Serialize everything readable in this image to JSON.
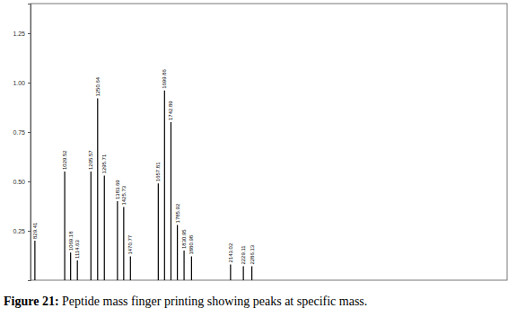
{
  "chart_data": {
    "type": "stem",
    "title": "Figure 21: Peptide mass finger printing showing peaks at specific mass.",
    "x": [
      829.41,
      1029.52,
      1069.18,
      1114.63,
      1205.57,
      1250.64,
      1295.71,
      1383.69,
      1425.73,
      1470.77,
      1657.81,
      1699.86,
      1742.89,
      1785.92,
      1830.95,
      1880.98,
      2143.02,
      2229.11,
      2286.13
    ],
    "values": [
      0.2,
      0.55,
      0.14,
      0.1,
      0.55,
      0.92,
      0.53,
      0.4,
      0.37,
      0.12,
      0.49,
      0.96,
      0.8,
      0.28,
      0.15,
      0.12,
      0.08,
      0.07,
      0.07
    ],
    "color": "#000000",
    "xlim": [
      800,
      4000
    ],
    "ylim": [
      0,
      1.4
    ],
    "yticks": [
      {
        "value": 0.25,
        "label": "0.25"
      },
      {
        "value": 0.5,
        "label": "0.50"
      },
      {
        "value": 0.75,
        "label": "0.75"
      },
      {
        "value": 1,
        "label": "1.00"
      },
      {
        "value": 1.25,
        "label": "1.25"
      }
    ],
    "tick_labels": "y",
    "grid": false,
    "data_labels": true
  }
}
